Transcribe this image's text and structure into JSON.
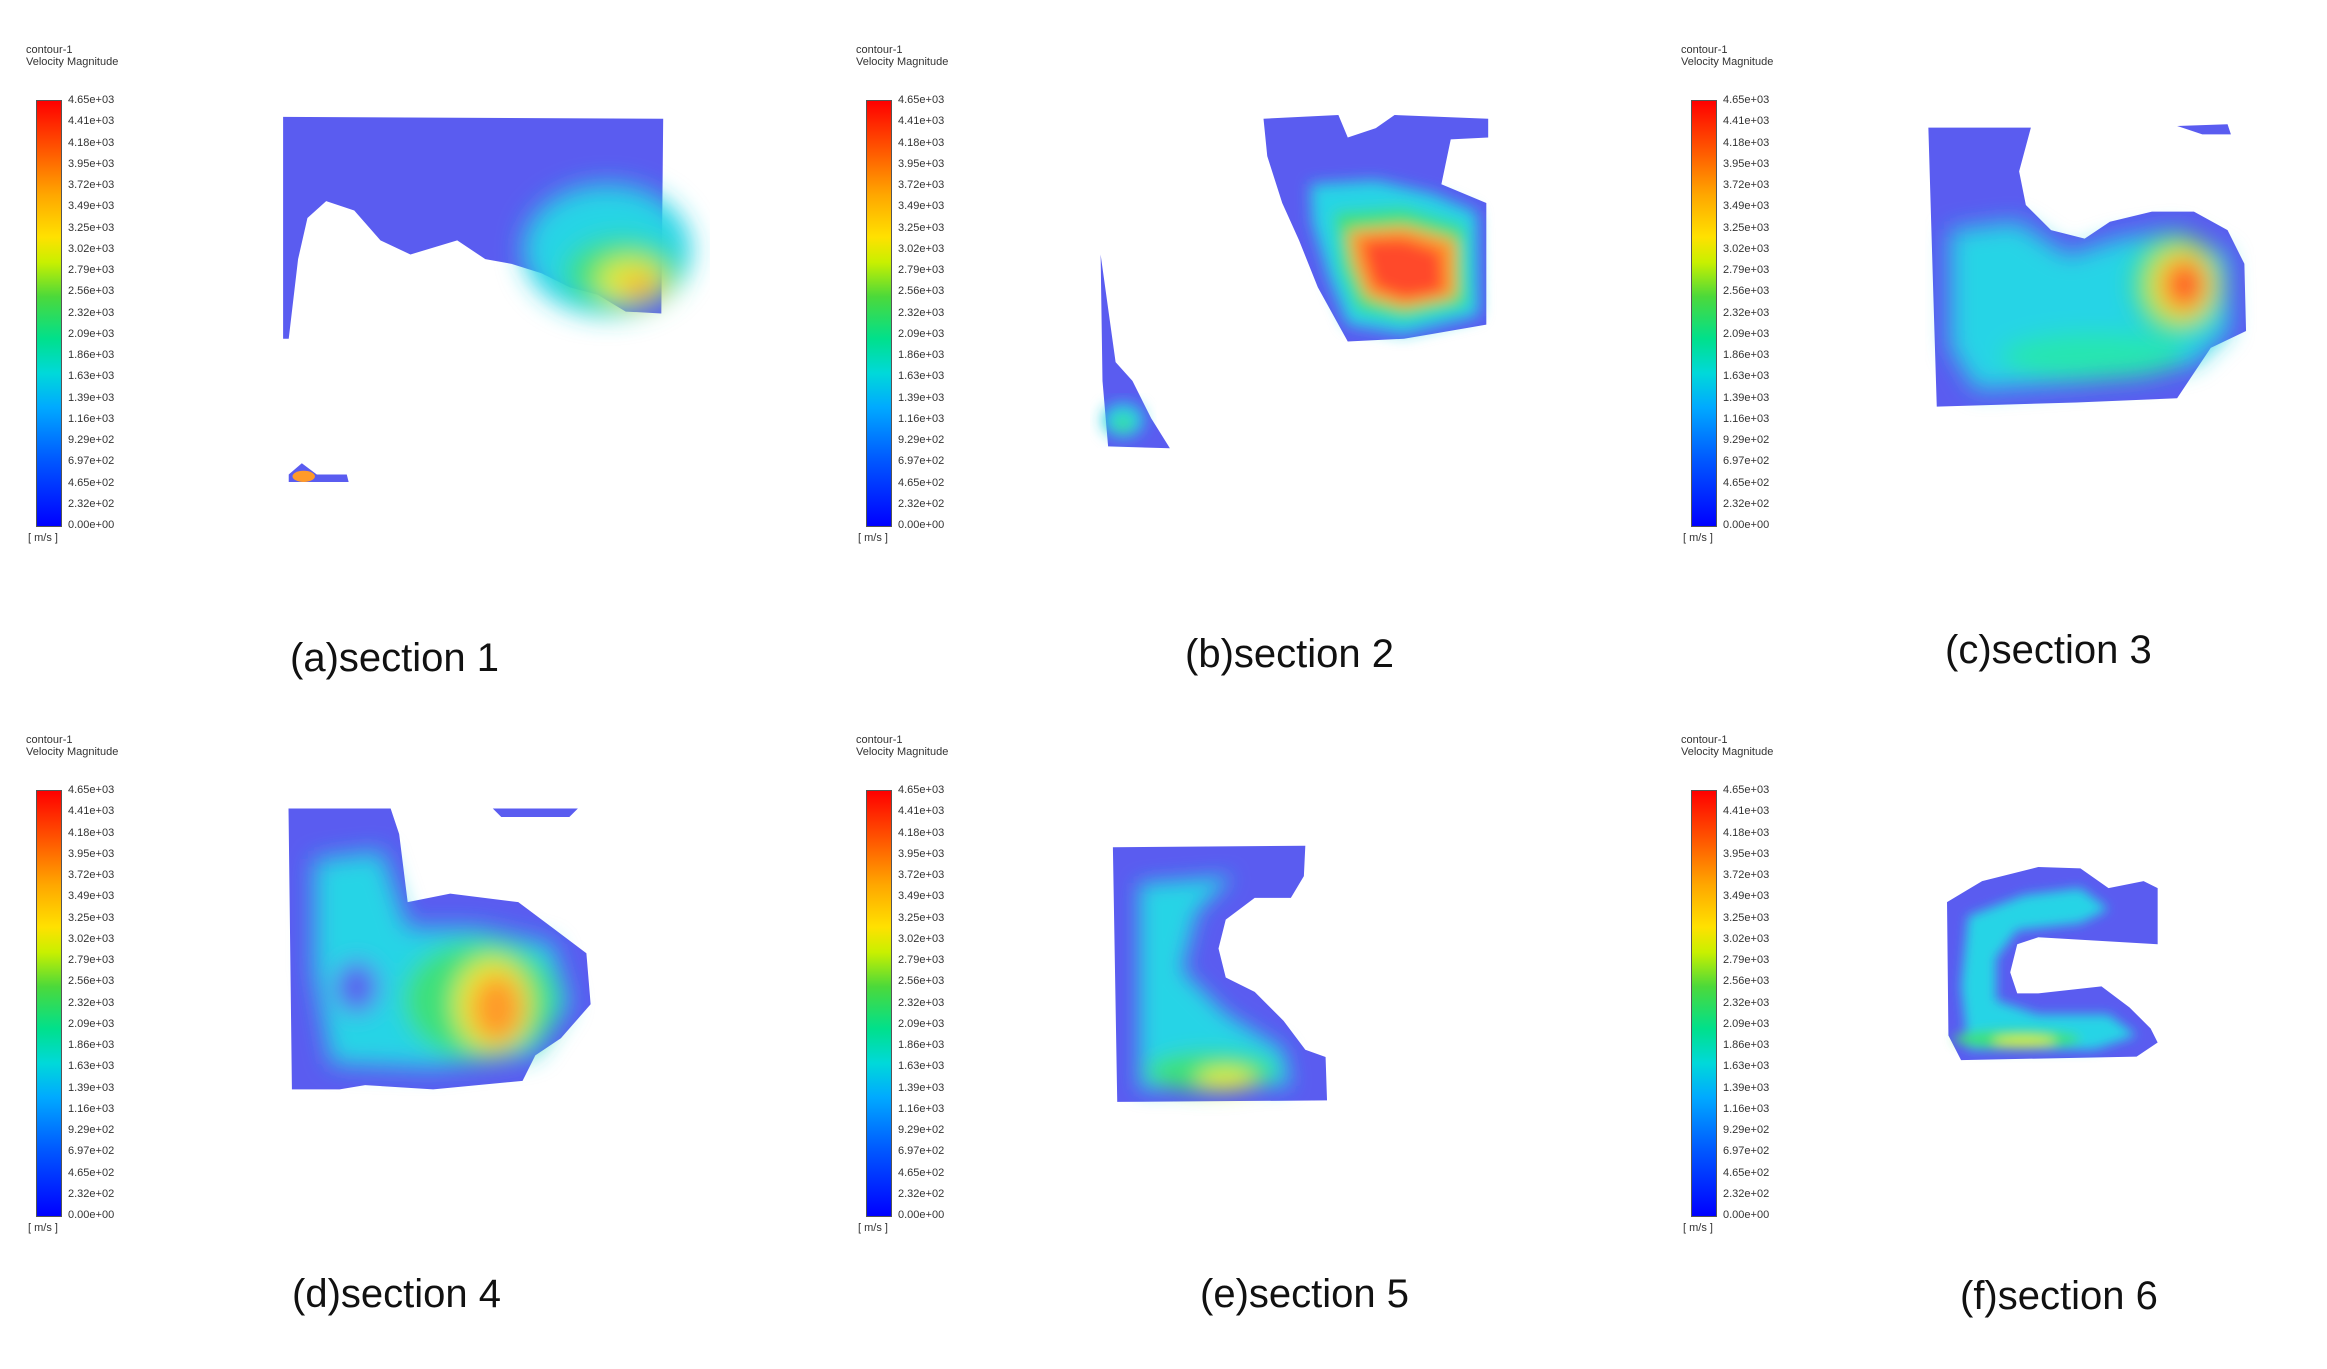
{
  "legend": {
    "title_line1": "contour-1",
    "title_line2": "Velocity Magnitude",
    "unit": "[ m/s ]",
    "ticks": [
      "4.65e+03",
      "4.41e+03",
      "4.18e+03",
      "3.95e+03",
      "3.72e+03",
      "3.49e+03",
      "3.25e+03",
      "3.02e+03",
      "2.79e+03",
      "2.56e+03",
      "2.32e+03",
      "2.09e+03",
      "1.86e+03",
      "1.63e+03",
      "1.39e+03",
      "1.16e+03",
      "9.29e+02",
      "6.97e+02",
      "4.65e+02",
      "2.32e+02",
      "0.00e+00"
    ]
  },
  "panels": [
    {
      "caption": "(a)section 1"
    },
    {
      "caption": "(b)section 2"
    },
    {
      "caption": "(c)section 3"
    },
    {
      "caption": "(d)section 4"
    },
    {
      "caption": "(e)section 5"
    },
    {
      "caption": "(f)section 6"
    }
  ],
  "colors": {
    "low": "#5a5cf0",
    "cyan": "#25d4e6",
    "green": "#3ee07a",
    "yellow": "#e6ec35",
    "orange": "#ff9a2a",
    "red": "#ff4a2a"
  }
}
